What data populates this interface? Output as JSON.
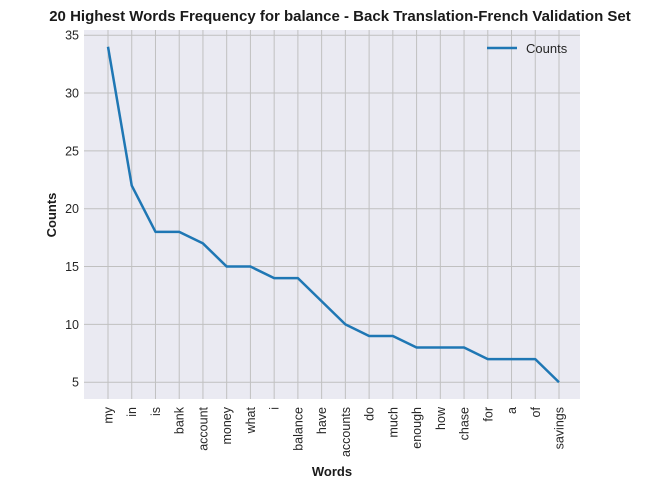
{
  "chart_data": {
    "type": "line",
    "title": "20 Highest Words Frequency for balance - Back Translation-French Validation Set",
    "xlabel": "Words",
    "ylabel": "Counts",
    "categories": [
      "my",
      "in",
      "is",
      "bank",
      "account",
      "money",
      "what",
      "i",
      "balance",
      "have",
      "accounts",
      "do",
      "much",
      "enough",
      "how",
      "chase",
      "for",
      "a",
      "of",
      "savings"
    ],
    "series": [
      {
        "name": "Counts",
        "values": [
          34,
          22,
          18,
          18,
          17,
          15,
          15,
          14,
          14,
          12,
          10,
          9,
          9,
          8,
          8,
          8,
          7,
          7,
          7,
          5
        ]
      }
    ],
    "ylim": [
      3.55,
      35.45
    ],
    "yticks": [
      5,
      10,
      15,
      20,
      25,
      30,
      35
    ],
    "grid": true,
    "legend": "top-right",
    "colors": {
      "line": "#1f77b4",
      "plot_background": "#eaeaf2",
      "grid": "#c0c0c0"
    }
  }
}
